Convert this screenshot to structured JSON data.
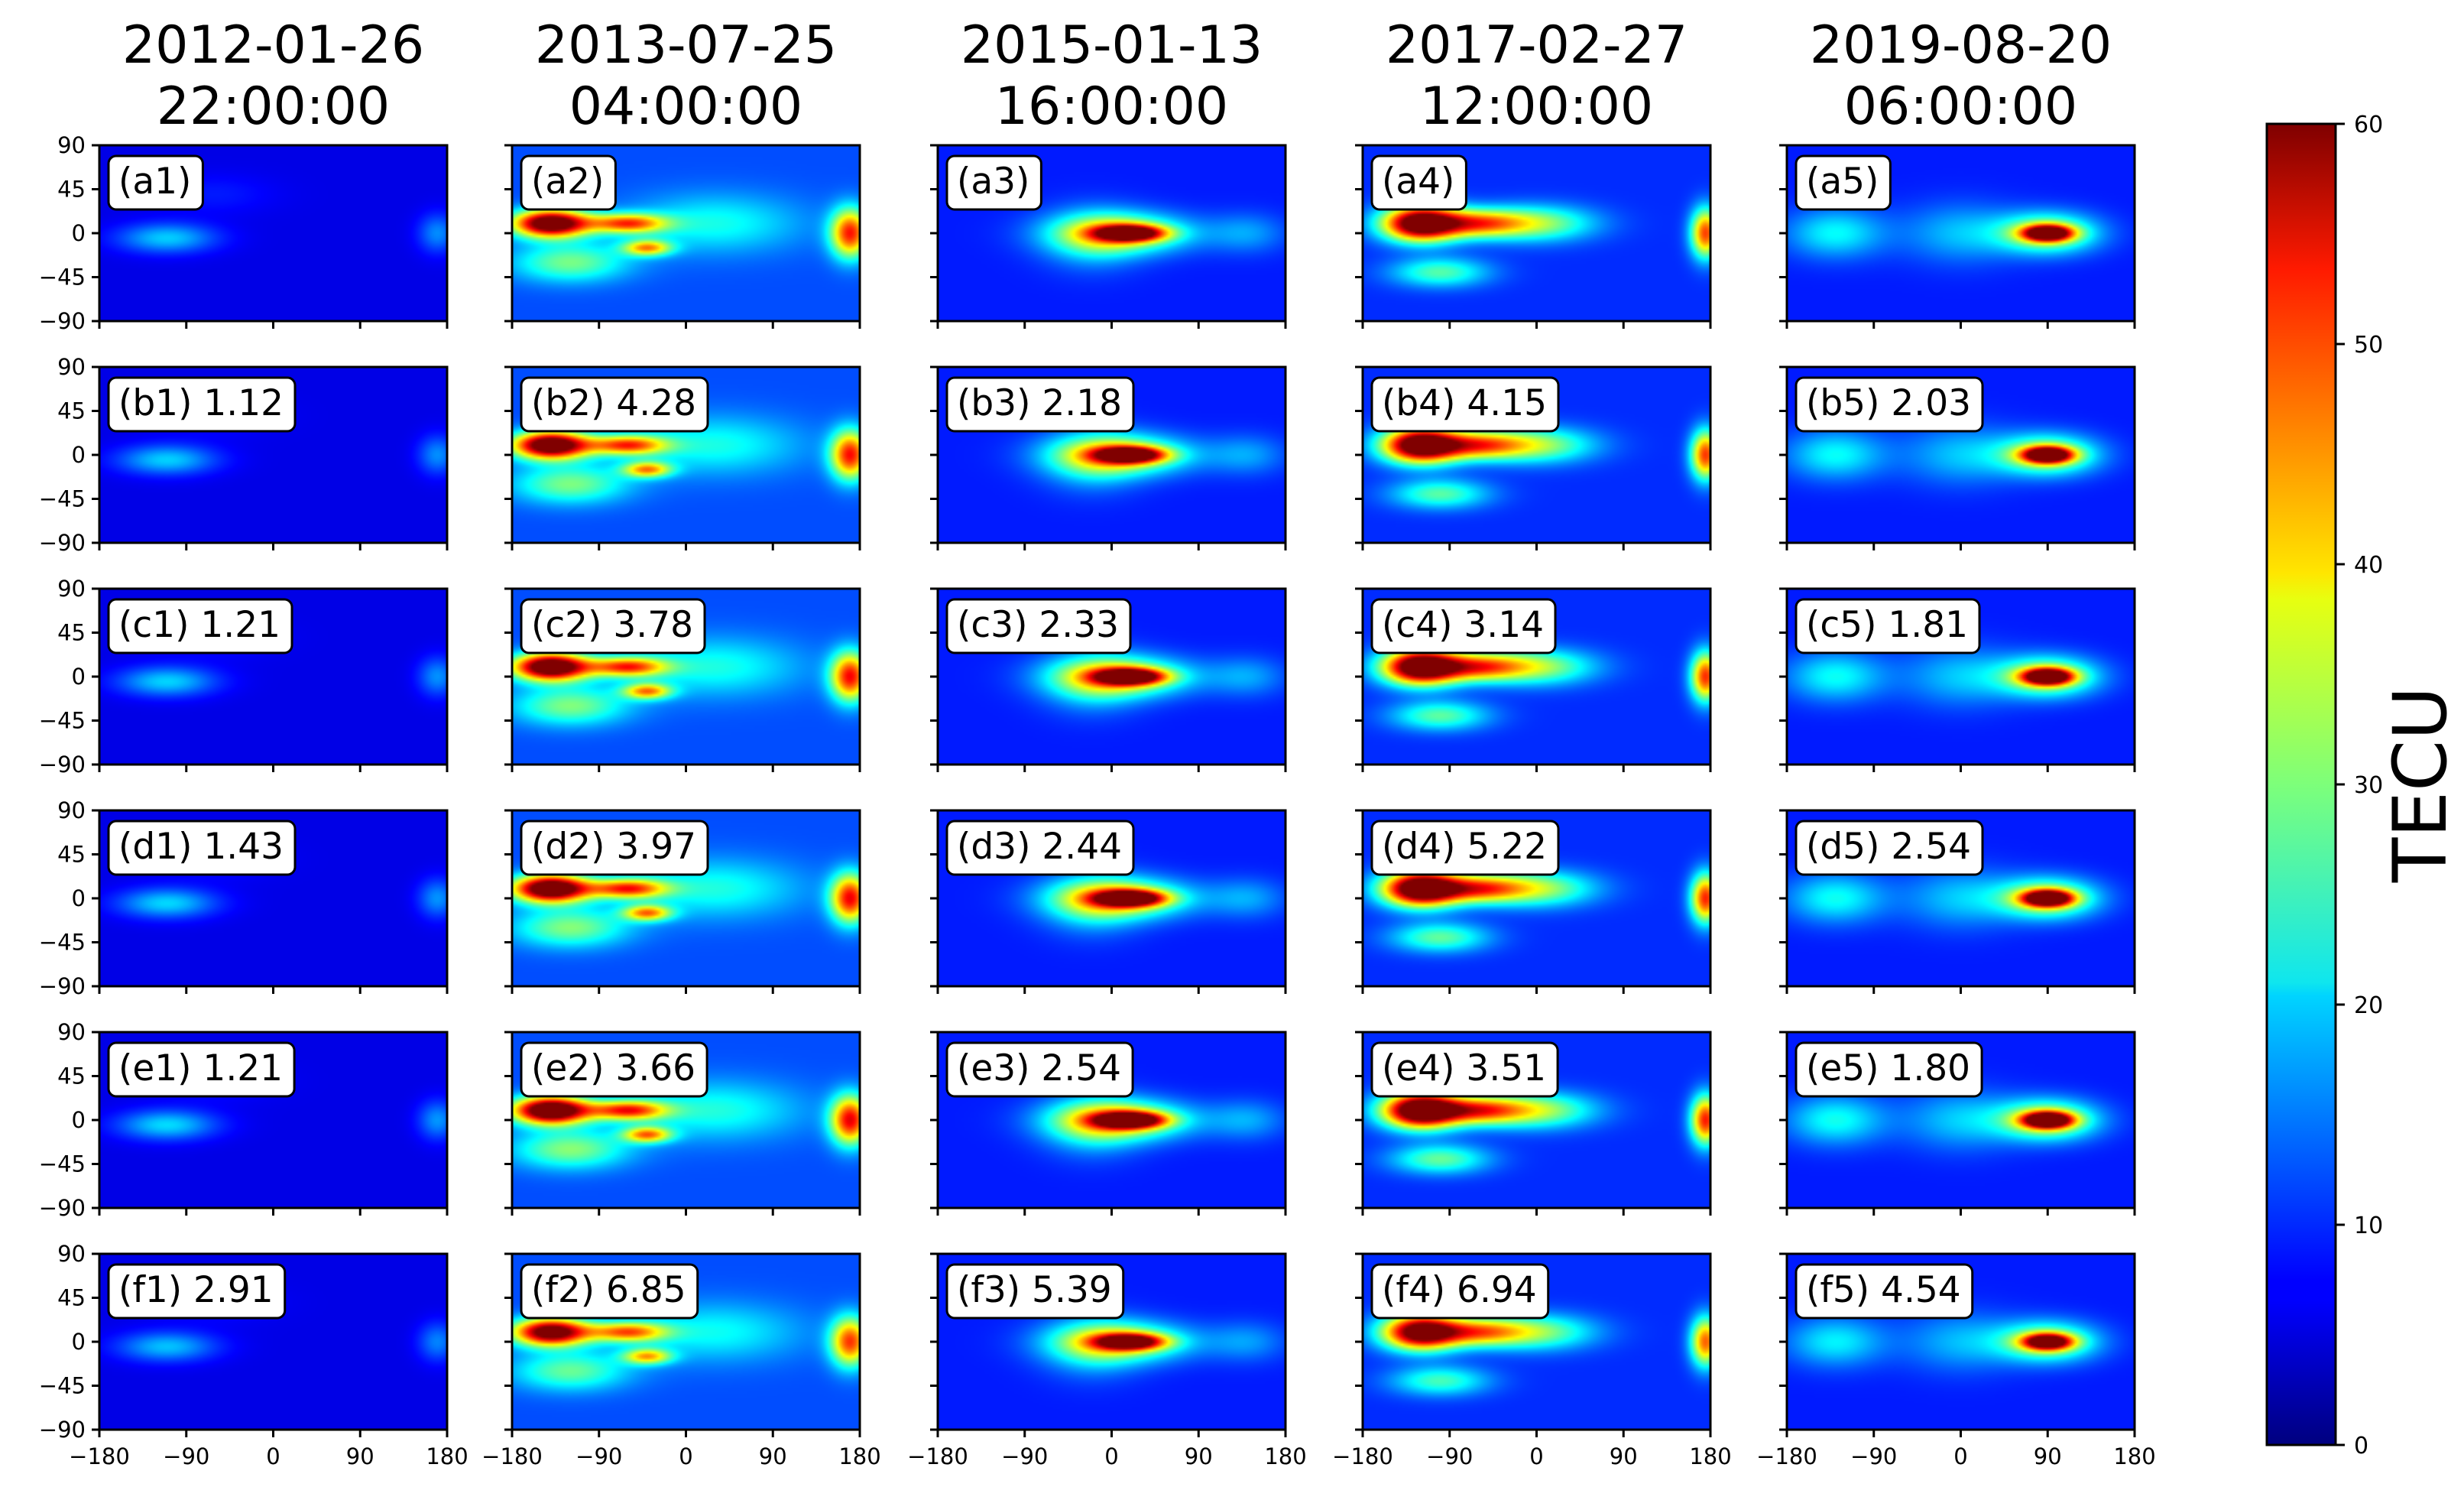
{
  "chart_data": {
    "type": "heatmap",
    "colorbar": {
      "label": "TECU",
      "colormap": "jet",
      "range": [
        0,
        60
      ],
      "ticks": [
        0,
        10,
        20,
        30,
        40,
        50,
        60
      ]
    },
    "columns": [
      {
        "title_date": "2012-01-26",
        "title_time": "22:00:00"
      },
      {
        "title_date": "2013-07-25",
        "title_time": "04:00:00"
      },
      {
        "title_date": "2015-01-13",
        "title_time": "16:00:00"
      },
      {
        "title_date": "2017-02-27",
        "title_time": "12:00:00"
      },
      {
        "title_date": "2019-08-20",
        "title_time": "06:00:00"
      }
    ],
    "x_ticks": [
      "−180",
      "−90",
      "0",
      "90",
      "180"
    ],
    "y_ticks": [
      "90",
      "45",
      "0",
      "−45",
      "−90"
    ],
    "xlim": [
      -180,
      180
    ],
    "ylim": [
      -90,
      90
    ],
    "panels": [
      [
        "(a1)",
        "(a2)",
        "(a3)",
        "(a4)",
        "(a5)"
      ],
      [
        "(b1) 1.12",
        "(b2) 4.28",
        "(b3) 2.18",
        "(b4) 4.15",
        "(b5) 2.03"
      ],
      [
        "(c1) 1.21",
        "(c2) 3.78",
        "(c3) 2.33",
        "(c4) 3.14",
        "(c5) 1.81"
      ],
      [
        "(d1) 1.43",
        "(d2) 3.97",
        "(d3) 2.44",
        "(d4) 5.22",
        "(d5) 2.54"
      ],
      [
        "(e1) 1.21",
        "(e2) 3.66",
        "(e3) 2.54",
        "(e4) 3.51",
        "(e5) 1.80"
      ],
      [
        "(f1) 2.91",
        "(f2) 6.85",
        "(f3) 5.39",
        "(f4) 6.94",
        "(f5) 4.54"
      ]
    ],
    "field_blobs_per_column": [
      {
        "background": 6,
        "blobs": [
          [
            -110,
            -5,
            50,
            15,
            14
          ],
          [
            170,
            0,
            20,
            20,
            10
          ],
          [
            -60,
            40,
            60,
            20,
            3
          ]
        ]
      },
      {
        "background": 12,
        "blobs": [
          [
            -140,
            10,
            40,
            14,
            60
          ],
          [
            -60,
            10,
            40,
            10,
            35
          ],
          [
            -40,
            -15,
            25,
            8,
            30
          ],
          [
            170,
            0,
            20,
            25,
            40
          ],
          [
            -120,
            -30,
            60,
            20,
            18
          ],
          [
            30,
            10,
            90,
            30,
            12
          ]
        ]
      },
      {
        "background": 9,
        "blobs": [
          [
            10,
            0,
            70,
            20,
            28
          ],
          [
            20,
            0,
            35,
            8,
            45
          ],
          [
            -20,
            -5,
            50,
            30,
            12
          ],
          [
            140,
            0,
            40,
            20,
            8
          ]
        ]
      },
      {
        "background": 10,
        "blobs": [
          [
            -120,
            10,
            40,
            18,
            62
          ],
          [
            -60,
            10,
            45,
            14,
            30
          ],
          [
            0,
            10,
            60,
            18,
            22
          ],
          [
            175,
            0,
            15,
            25,
            40
          ],
          [
            -100,
            -40,
            50,
            15,
            18
          ]
        ]
      },
      {
        "background": 9,
        "blobs": [
          [
            90,
            0,
            50,
            20,
            28
          ],
          [
            90,
            0,
            25,
            8,
            50
          ],
          [
            -130,
            0,
            50,
            25,
            14
          ],
          [
            0,
            0,
            60,
            30,
            10
          ]
        ]
      }
    ]
  }
}
